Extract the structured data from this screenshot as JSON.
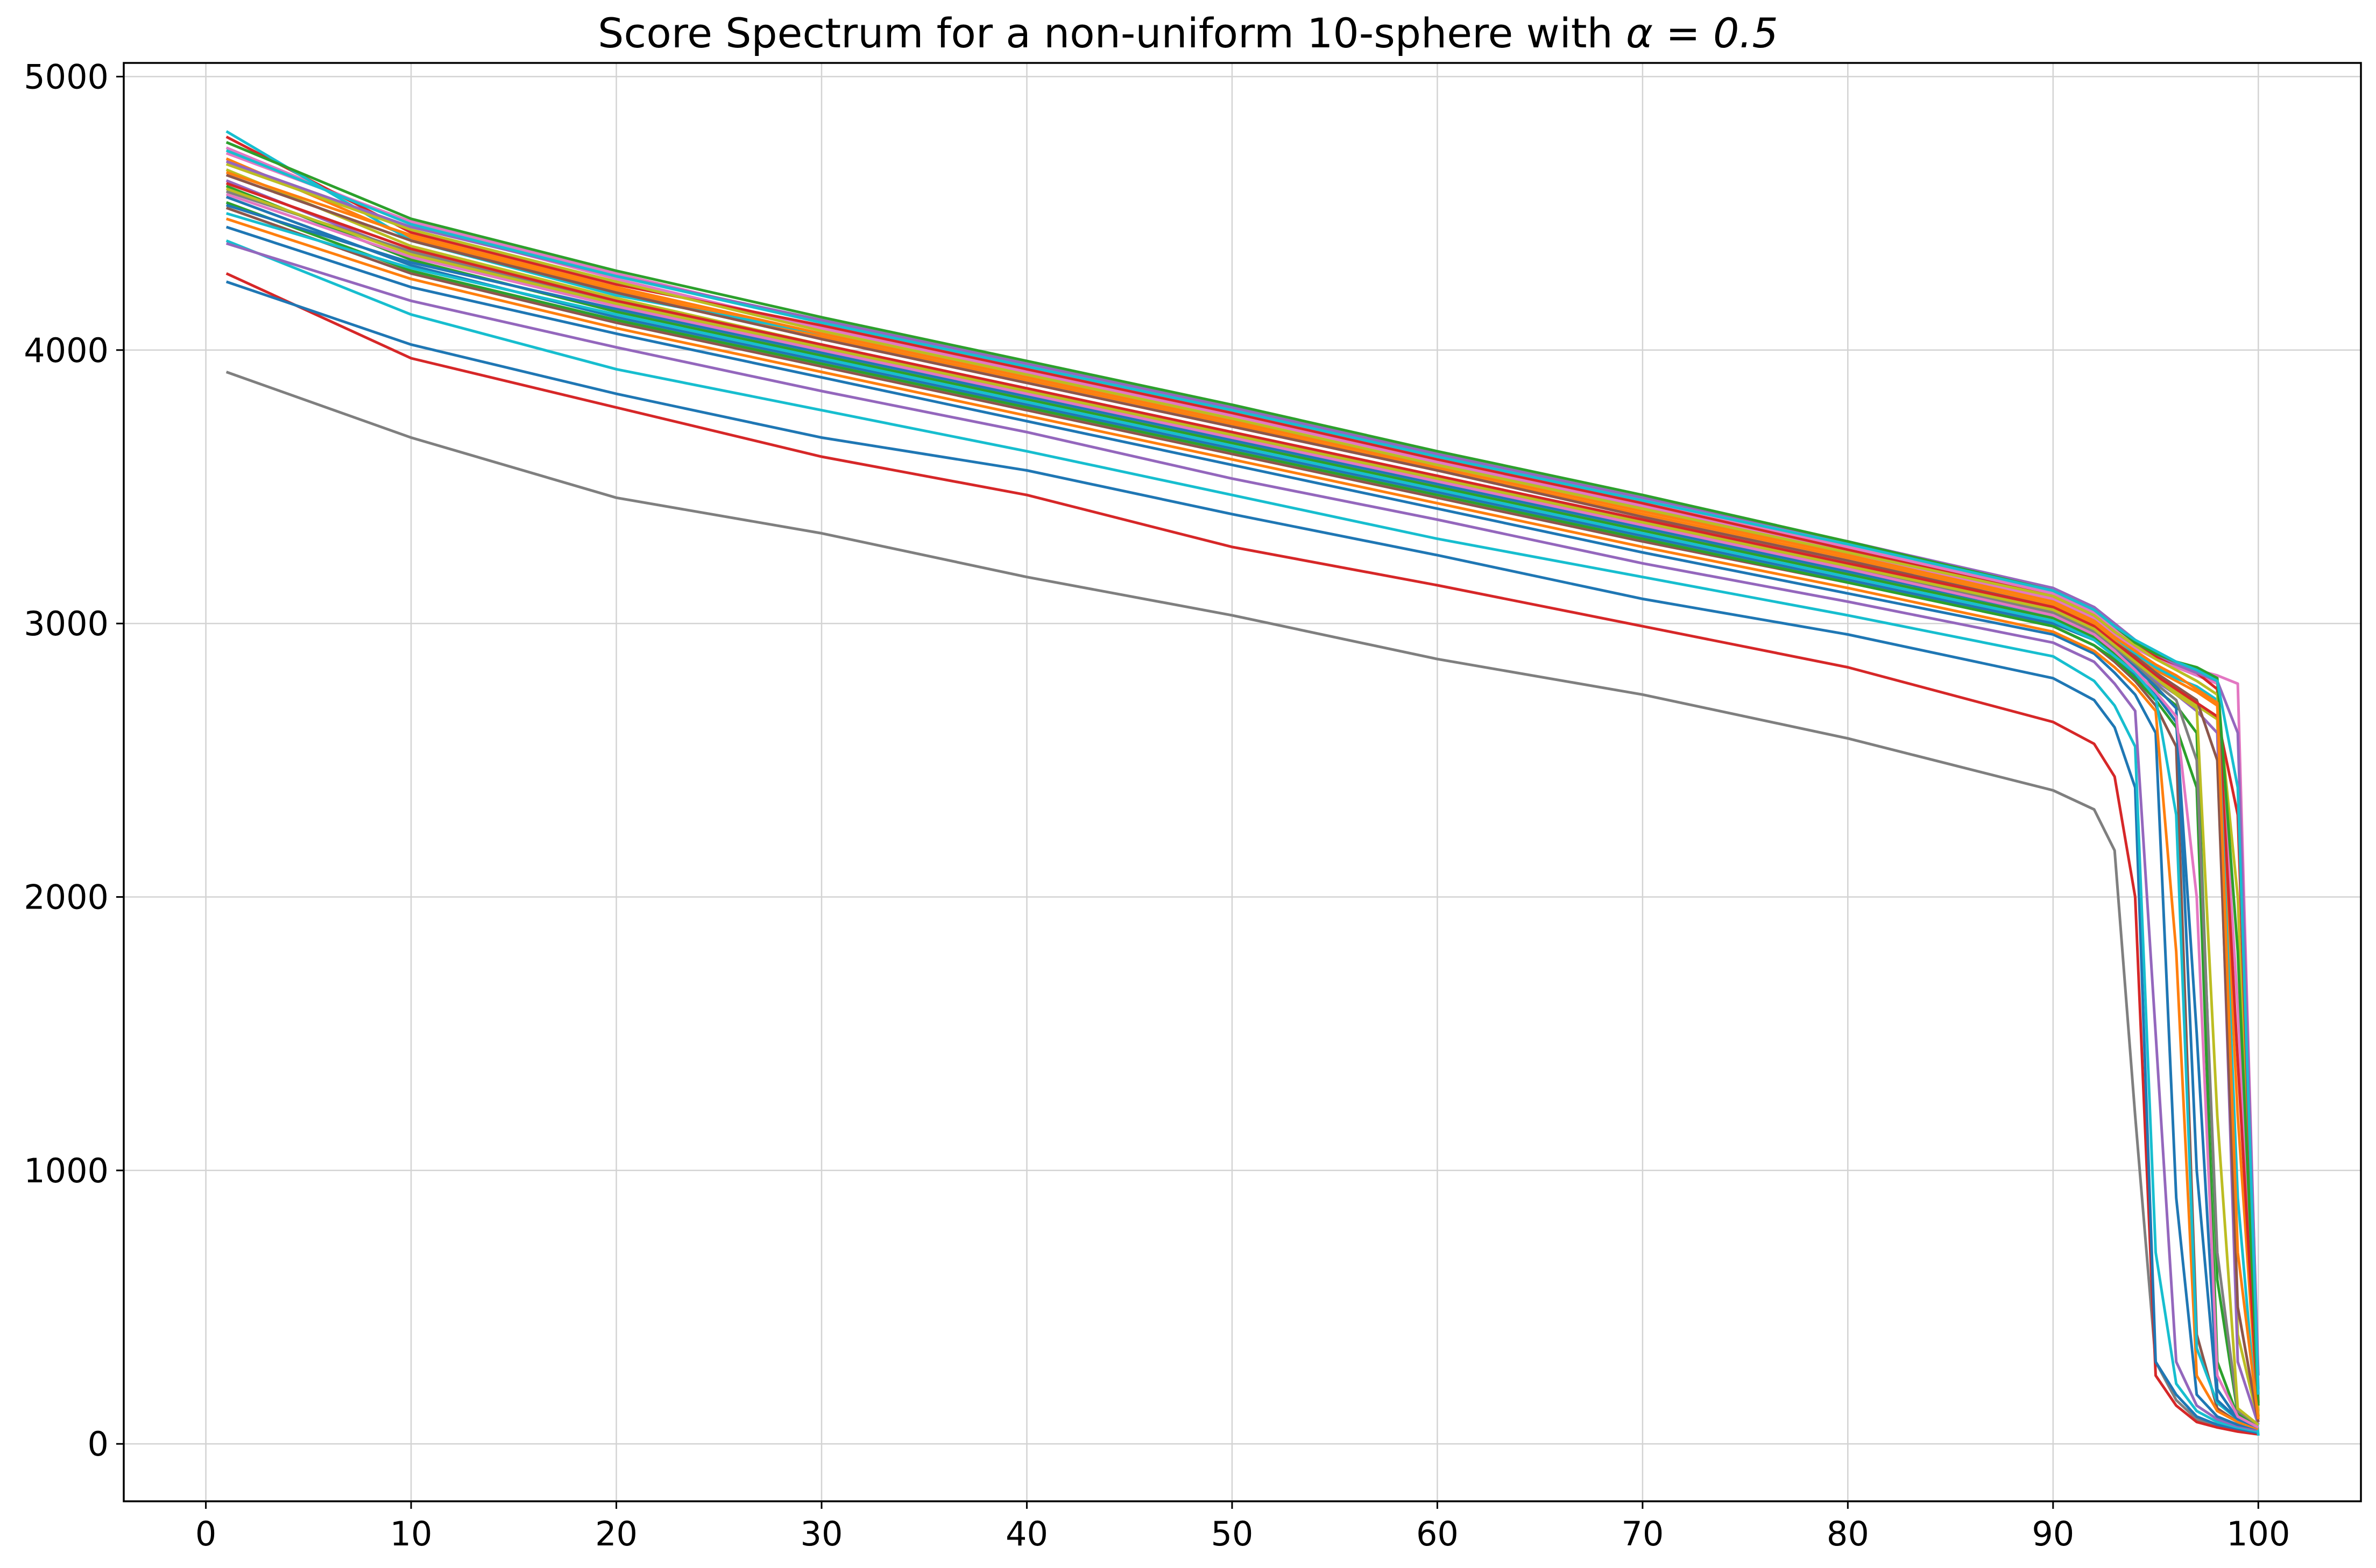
{
  "chart_data": {
    "type": "line",
    "title": "Score Spectrum for a non-uniform 10-sphere with ",
    "title_math": "α = 0.5",
    "xlabel": "",
    "ylabel": "",
    "xlim": [
      -4,
      105
    ],
    "ylim": [
      -210,
      5050
    ],
    "xticks": [
      0,
      10,
      20,
      30,
      40,
      50,
      60,
      70,
      80,
      90,
      100
    ],
    "yticks": [
      0,
      1000,
      2000,
      3000,
      4000,
      5000
    ],
    "grid": true,
    "legend": "none",
    "colors": [
      "#1f77b4",
      "#ff7f0e",
      "#2ca02c",
      "#d62728",
      "#9467bd",
      "#8c564b",
      "#e377c2",
      "#7f7f7f",
      "#bcbd22",
      "#17becf"
    ],
    "x": [
      1,
      10,
      20,
      30,
      40,
      50,
      60,
      70,
      80,
      90,
      92,
      93,
      94,
      95,
      96,
      97,
      98,
      99,
      100
    ],
    "series": [
      {
        "color": "#7f7f7f",
        "values": [
          3920,
          3680,
          3460,
          3330,
          3170,
          3030,
          2870,
          2740,
          2580,
          2390,
          2320,
          2170,
          1200,
          300,
          160,
          90,
          60,
          50,
          40
        ]
      },
      {
        "color": "#d62728",
        "values": [
          4280,
          3970,
          3790,
          3610,
          3470,
          3280,
          3140,
          2990,
          2840,
          2640,
          2560,
          2440,
          2000,
          250,
          140,
          80,
          60,
          45,
          35
        ]
      },
      {
        "color": "#1f77b4",
        "values": [
          4250,
          4020,
          3840,
          3680,
          3560,
          3400,
          3250,
          3090,
          2960,
          2800,
          2720,
          2620,
          2400,
          300,
          180,
          100,
          70,
          55,
          40
        ]
      },
      {
        "color": "#17becf",
        "values": [
          4400,
          4130,
          3930,
          3780,
          3630,
          3470,
          3310,
          3170,
          3030,
          2880,
          2790,
          2700,
          2550,
          700,
          220,
          120,
          80,
          60,
          45
        ]
      },
      {
        "color": "#9467bd",
        "values": [
          4390,
          4180,
          4010,
          3850,
          3700,
          3530,
          3380,
          3220,
          3080,
          2930,
          2860,
          2780,
          2680,
          1500,
          300,
          140,
          90,
          65,
          50
        ]
      },
      {
        "color": "#1f77b4",
        "values": [
          4450,
          4230,
          4060,
          3900,
          3740,
          3580,
          3420,
          3260,
          3110,
          2960,
          2890,
          2820,
          2740,
          2600,
          900,
          180,
          100,
          70,
          55
        ]
      },
      {
        "color": "#8c564b",
        "values": [
          4520,
          4280,
          4100,
          3940,
          3780,
          3620,
          3460,
          3300,
          3150,
          2990,
          2920,
          2860,
          2790,
          2700,
          2550,
          400,
          130,
          80,
          60
        ]
      },
      {
        "color": "#2ca02c",
        "values": [
          4600,
          4330,
          4140,
          3980,
          3820,
          3660,
          3500,
          3340,
          3180,
          3020,
          2950,
          2890,
          2820,
          2760,
          2700,
          2600,
          600,
          110,
          70
        ]
      },
      {
        "color": "#bcbd22",
        "values": [
          4660,
          4380,
          4190,
          4020,
          3860,
          3700,
          3540,
          3370,
          3210,
          3050,
          2980,
          2920,
          2860,
          2800,
          2750,
          2700,
          2650,
          400,
          80
        ]
      },
      {
        "color": "#ff7f0e",
        "values": [
          4700,
          4410,
          4220,
          4050,
          3890,
          3730,
          3560,
          3400,
          3240,
          3070,
          3000,
          2940,
          2880,
          2830,
          2790,
          2750,
          2700,
          1200,
          90
        ]
      },
      {
        "color": "#e377c2",
        "values": [
          4740,
          4460,
          4260,
          4080,
          3920,
          3760,
          3590,
          3430,
          3260,
          3090,
          3020,
          2960,
          2910,
          2870,
          2840,
          2810,
          2780,
          1600,
          120
        ]
      },
      {
        "color": "#d62728",
        "values": [
          4780,
          4430,
          4240,
          4090,
          3930,
          3770,
          3600,
          3440,
          3270,
          3100,
          3030,
          2970,
          2920,
          2880,
          2850,
          2820,
          2760,
          1400,
          100
        ]
      },
      {
        "color": "#17becf",
        "values": [
          4800,
          4400,
          4200,
          4060,
          3900,
          3740,
          3580,
          3420,
          3250,
          3080,
          3010,
          2950,
          2890,
          2840,
          2800,
          2770,
          2720,
          900,
          30
        ]
      },
      {
        "color": "#9467bd",
        "values": [
          4620,
          4350,
          4160,
          4000,
          3840,
          3680,
          3520,
          3360,
          3200,
          3040,
          2970,
          2910,
          2850,
          2790,
          2740,
          2680,
          2600,
          300,
          70
        ]
      },
      {
        "color": "#1f77b4",
        "values": [
          4560,
          4310,
          4120,
          3960,
          3800,
          3640,
          3480,
          3320,
          3160,
          3000,
          2940,
          2880,
          2810,
          2740,
          2640,
          1500,
          200,
          90,
          60
        ]
      },
      {
        "color": "#ff7f0e",
        "values": [
          4480,
          4260,
          4080,
          3920,
          3760,
          3600,
          3440,
          3280,
          3130,
          2970,
          2900,
          2840,
          2770,
          2680,
          1800,
          250,
          120,
          80,
          55
        ]
      },
      {
        "color": "#2ca02c",
        "values": [
          4540,
          4290,
          4110,
          3950,
          3790,
          3630,
          3470,
          3310,
          3150,
          2990,
          2920,
          2870,
          2800,
          2720,
          2620,
          2400,
          300,
          100,
          60
        ]
      },
      {
        "color": "#e377c2",
        "values": [
          4720,
          4470,
          4280,
          4100,
          3940,
          3780,
          3610,
          3450,
          3280,
          3110,
          3040,
          2980,
          2930,
          2890,
          2860,
          2830,
          2810,
          2780,
          200
        ]
      },
      {
        "color": "#bcbd22",
        "values": [
          4680,
          4440,
          4250,
          4070,
          3910,
          3750,
          3580,
          3420,
          3260,
          3100,
          3030,
          2970,
          2920,
          2870,
          2830,
          2790,
          2740,
          2000,
          100
        ]
      },
      {
        "color": "#8c564b",
        "values": [
          4640,
          4400,
          4210,
          4040,
          3880,
          3720,
          3560,
          3390,
          3230,
          3060,
          2990,
          2930,
          2880,
          2820,
          2770,
          2720,
          2500,
          500,
          80
        ]
      },
      {
        "color": "#7f7f7f",
        "values": [
          4580,
          4360,
          4170,
          4010,
          3850,
          3690,
          3530,
          3370,
          3210,
          3040,
          2970,
          2910,
          2850,
          2780,
          2720,
          2500,
          700,
          120,
          70
        ]
      },
      {
        "color": "#17becf",
        "values": [
          4500,
          4300,
          4130,
          3970,
          3810,
          3650,
          3490,
          3330,
          3170,
          3010,
          2940,
          2880,
          2820,
          2730,
          2300,
          350,
          150,
          90,
          60
        ]
      },
      {
        "color": "#d62728",
        "values": [
          4610,
          4370,
          4180,
          4020,
          3860,
          3700,
          3540,
          3380,
          3220,
          3060,
          2990,
          2930,
          2870,
          2810,
          2760,
          2710,
          2660,
          2300,
          150
        ]
      },
      {
        "color": "#9467bd",
        "values": [
          4690,
          4450,
          4270,
          4110,
          3950,
          3790,
          3620,
          3460,
          3300,
          3130,
          3060,
          3000,
          2940,
          2890,
          2850,
          2820,
          2790,
          2600,
          250
        ]
      },
      {
        "color": "#2ca02c",
        "values": [
          4760,
          4480,
          4290,
          4120,
          3960,
          3800,
          3630,
          3470,
          3300,
          3120,
          3050,
          2990,
          2930,
          2890,
          2860,
          2840,
          2800,
          1800,
          140
        ]
      },
      {
        "color": "#1f77b4",
        "values": [
          4530,
          4320,
          4150,
          3990,
          3830,
          3670,
          3510,
          3350,
          3190,
          3030,
          2960,
          2900,
          2840,
          2770,
          2690,
          1000,
          160,
          90,
          60
        ]
      },
      {
        "color": "#ff7f0e",
        "values": [
          4650,
          4420,
          4230,
          4060,
          3900,
          3740,
          3570,
          3410,
          3250,
          3080,
          3010,
          2950,
          2900,
          2850,
          2810,
          2760,
          2710,
          700,
          90
        ]
      },
      {
        "color": "#e377c2",
        "values": [
          4570,
          4340,
          4160,
          4000,
          3840,
          3680,
          3520,
          3360,
          3200,
          3030,
          2960,
          2900,
          2830,
          2750,
          2660,
          2000,
          250,
          100,
          60
        ]
      },
      {
        "color": "#bcbd22",
        "values": [
          4590,
          4350,
          4170,
          4010,
          3850,
          3690,
          3530,
          3370,
          3210,
          3050,
          2980,
          2920,
          2860,
          2800,
          2740,
          2690,
          1200,
          130,
          70
        ]
      },
      {
        "color": "#17becf",
        "values": [
          4730,
          4460,
          4270,
          4100,
          3940,
          3780,
          3610,
          3450,
          3290,
          3120,
          3050,
          2990,
          2940,
          2900,
          2860,
          2830,
          2790,
          2400,
          180
        ]
      }
    ]
  }
}
